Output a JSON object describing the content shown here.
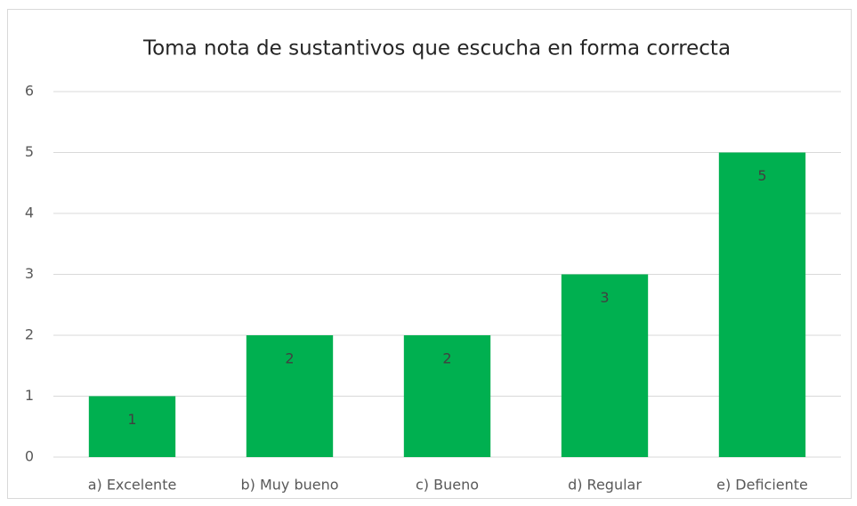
{
  "chart_data": {
    "type": "bar",
    "title": "Toma nota de sustantivos que escucha en forma correcta",
    "categories": [
      "a) Excelente",
      "b) Muy bueno",
      "c) Bueno",
      "d) Regular",
      "e) Deficiente"
    ],
    "values": [
      1,
      2,
      2,
      3,
      5
    ],
    "color": "#00b050",
    "ylim": [
      0,
      6
    ],
    "yticks": [
      0,
      1,
      2,
      3,
      4,
      5,
      6
    ],
    "grid": true
  }
}
